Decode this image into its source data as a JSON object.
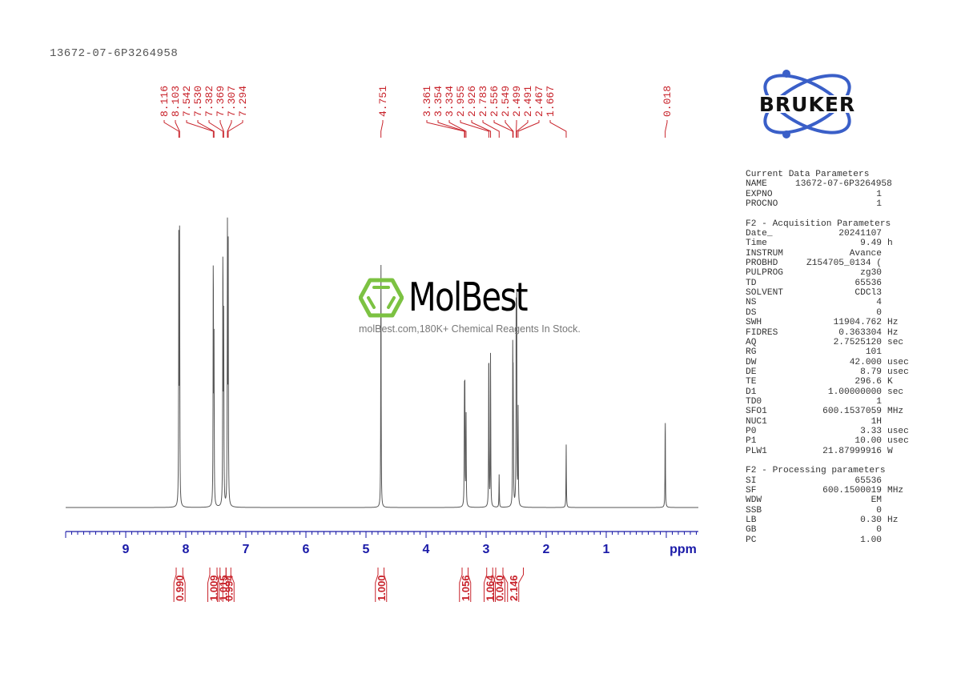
{
  "title": "13672-07-6P3264958",
  "chart_data": {
    "type": "line",
    "title": "1H NMR spectrum 13672-07-6P3264958",
    "xlabel": "ppm",
    "ylabel": "",
    "xlim": [
      10.0,
      -0.53
    ],
    "x_reversed": true,
    "grid": false,
    "x_ticks": [
      9,
      8,
      7,
      6,
      5,
      4,
      3,
      2,
      1
    ],
    "x_tick_labels": [
      "9",
      "8",
      "7",
      "6",
      "5",
      "4",
      "3",
      "2",
      "1"
    ],
    "axis_unit_label": "ppm",
    "peaks": [
      {
        "ppm": 8.116,
        "height": 0.98
      },
      {
        "ppm": 8.103,
        "height": 0.96
      },
      {
        "ppm": 7.542,
        "height": 0.96
      },
      {
        "ppm": 7.53,
        "height": 0.57
      },
      {
        "ppm": 7.382,
        "height": 0.99
      },
      {
        "ppm": 7.369,
        "height": 0.7
      },
      {
        "ppm": 7.307,
        "height": 1.0
      },
      {
        "ppm": 7.294,
        "height": 0.95
      },
      {
        "ppm": 4.751,
        "height": 0.95
      },
      {
        "ppm": 3.361,
        "height": 0.38
      },
      {
        "ppm": 3.354,
        "height": 0.4
      },
      {
        "ppm": 3.334,
        "height": 0.34
      },
      {
        "ppm": 2.955,
        "height": 0.63
      },
      {
        "ppm": 2.926,
        "height": 0.57
      },
      {
        "ppm": 2.783,
        "height": 0.12
      },
      {
        "ppm": 2.556,
        "height": 0.55
      },
      {
        "ppm": 2.549,
        "height": 0.41
      },
      {
        "ppm": 2.499,
        "height": 0.71
      },
      {
        "ppm": 2.491,
        "height": 0.73
      },
      {
        "ppm": 2.467,
        "height": 0.35
      },
      {
        "ppm": 1.667,
        "height": 0.23
      },
      {
        "ppm": 0.018,
        "height": 0.35
      }
    ],
    "peak_labels": [
      "8.116",
      "8.103",
      "7.542",
      "7.530",
      "7.382",
      "7.369",
      "7.307",
      "7.294",
      "4.751",
      "3.361",
      "3.354",
      "3.334",
      "2.955",
      "2.926",
      "2.783",
      "2.556",
      "2.549",
      "2.499",
      "2.491",
      "2.467",
      "1.667",
      "0.018"
    ],
    "integrals": [
      {
        "from": 8.16,
        "to": 8.05,
        "value": "0.990"
      },
      {
        "from": 7.6,
        "to": 7.48,
        "value": "1.009"
      },
      {
        "from": 7.43,
        "to": 7.33,
        "value": "1.015"
      },
      {
        "from": 7.33,
        "to": 7.25,
        "value": "0.994"
      },
      {
        "from": 4.8,
        "to": 4.7,
        "value": "1.000"
      },
      {
        "from": 3.4,
        "to": 3.3,
        "value": "1.056"
      },
      {
        "from": 2.99,
        "to": 2.89,
        "value": "1.064"
      },
      {
        "from": 2.84,
        "to": 2.72,
        "value": "0.040"
      },
      {
        "from": 2.72,
        "to": 2.38,
        "value": "2.146"
      }
    ]
  },
  "colors": {
    "peak_label": "#c8232b",
    "integral": "#c8232b",
    "axis": "#1a1aa8",
    "spectrum": "#555555",
    "bruker_blue": "#3a5fc8",
    "molbest_green": "#7cc242"
  },
  "bruker_logo_text": "BRUKER",
  "watermark": {
    "brand": "MolBest",
    "tagline": "molBest.com,180K+ Chemical Reagents In Stock."
  },
  "parameters": [
    {
      "heading": "Current Data Parameters",
      "rows": [
        {
          "key": "NAME",
          "value": "13672-07-6P3264958",
          "unit": ""
        },
        {
          "key": "EXPNO",
          "value": "1",
          "unit": ""
        },
        {
          "key": "PROCNO",
          "value": "1",
          "unit": ""
        }
      ]
    },
    {
      "heading": "F2 - Acquisition Parameters",
      "rows": [
        {
          "key": "Date_",
          "value": "20241107",
          "unit": ""
        },
        {
          "key": "Time",
          "value": "9.49",
          "unit": "h"
        },
        {
          "key": "INSTRUM",
          "value": "Avance",
          "unit": ""
        },
        {
          "key": "PROBHD",
          "value": "Z154705_0134 (",
          "unit": ""
        },
        {
          "key": "PULPROG",
          "value": "zg30",
          "unit": ""
        },
        {
          "key": "TD",
          "value": "65536",
          "unit": ""
        },
        {
          "key": "SOLVENT",
          "value": "CDCl3",
          "unit": ""
        },
        {
          "key": "NS",
          "value": "4",
          "unit": ""
        },
        {
          "key": "DS",
          "value": "0",
          "unit": ""
        },
        {
          "key": "SWH",
          "value": "11904.762",
          "unit": "Hz"
        },
        {
          "key": "FIDRES",
          "value": "0.363304",
          "unit": "Hz"
        },
        {
          "key": "AQ",
          "value": "2.7525120",
          "unit": "sec"
        },
        {
          "key": "RG",
          "value": "101",
          "unit": ""
        },
        {
          "key": "DW",
          "value": "42.000",
          "unit": "usec"
        },
        {
          "key": "DE",
          "value": "8.79",
          "unit": "usec"
        },
        {
          "key": "TE",
          "value": "296.6",
          "unit": "K"
        },
        {
          "key": "D1",
          "value": "1.00000000",
          "unit": "sec"
        },
        {
          "key": "TD0",
          "value": "1",
          "unit": ""
        },
        {
          "key": "SFO1",
          "value": "600.1537059",
          "unit": "MHz"
        },
        {
          "key": "NUC1",
          "value": "1H",
          "unit": ""
        },
        {
          "key": "P0",
          "value": "3.33",
          "unit": "usec"
        },
        {
          "key": "P1",
          "value": "10.00",
          "unit": "usec"
        },
        {
          "key": "PLW1",
          "value": "21.87999916",
          "unit": "W"
        }
      ]
    },
    {
      "heading": "F2 - Processing parameters",
      "rows": [
        {
          "key": "SI",
          "value": "65536",
          "unit": ""
        },
        {
          "key": "SF",
          "value": "600.1500019",
          "unit": "MHz"
        },
        {
          "key": "WDW",
          "value": "EM",
          "unit": ""
        },
        {
          "key": "SSB",
          "value": "0",
          "unit": ""
        },
        {
          "key": "LB",
          "value": "0.30",
          "unit": "Hz"
        },
        {
          "key": "GB",
          "value": "0",
          "unit": ""
        },
        {
          "key": "PC",
          "value": "1.00",
          "unit": ""
        }
      ]
    }
  ]
}
